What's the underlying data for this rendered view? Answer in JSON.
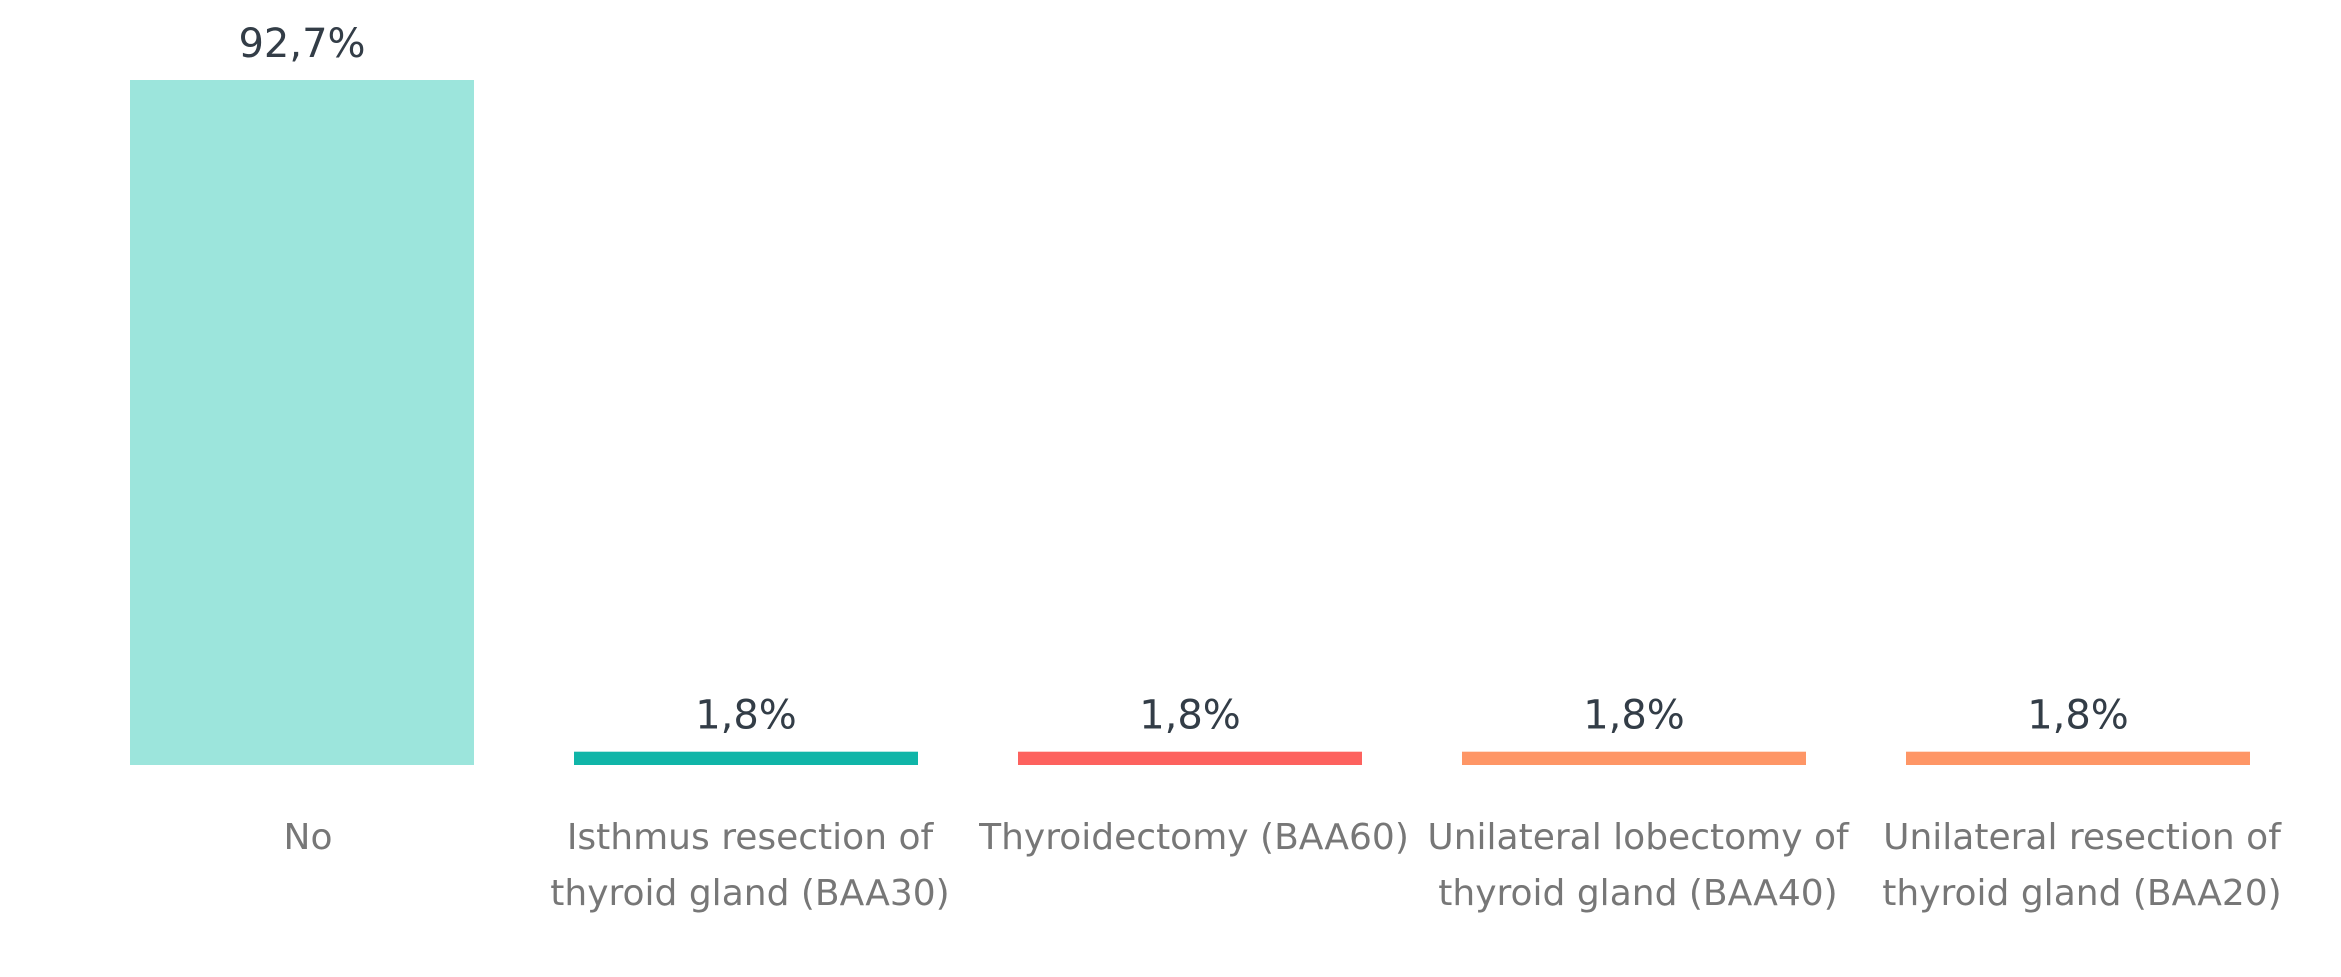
{
  "chart_data": {
    "type": "bar",
    "categories": [
      "No",
      "Isthmus resection of thyroid gland (BAA30)",
      "Thyroidectomy (BAA60)",
      "Unilateral lobectomy of thyroid gland (BAA40)",
      "Unilateral resection of thyroid gland (BAA20)"
    ],
    "values": [
      92.7,
      1.8,
      1.8,
      1.8,
      1.8
    ],
    "value_labels": [
      "92,7%",
      "1,8%",
      "1,8%",
      "1,8%",
      "1,8%"
    ],
    "colors": [
      "#9ce5dc",
      "#10b5a8",
      "#fd625e",
      "#fe9666",
      "#fe9666"
    ]
  }
}
